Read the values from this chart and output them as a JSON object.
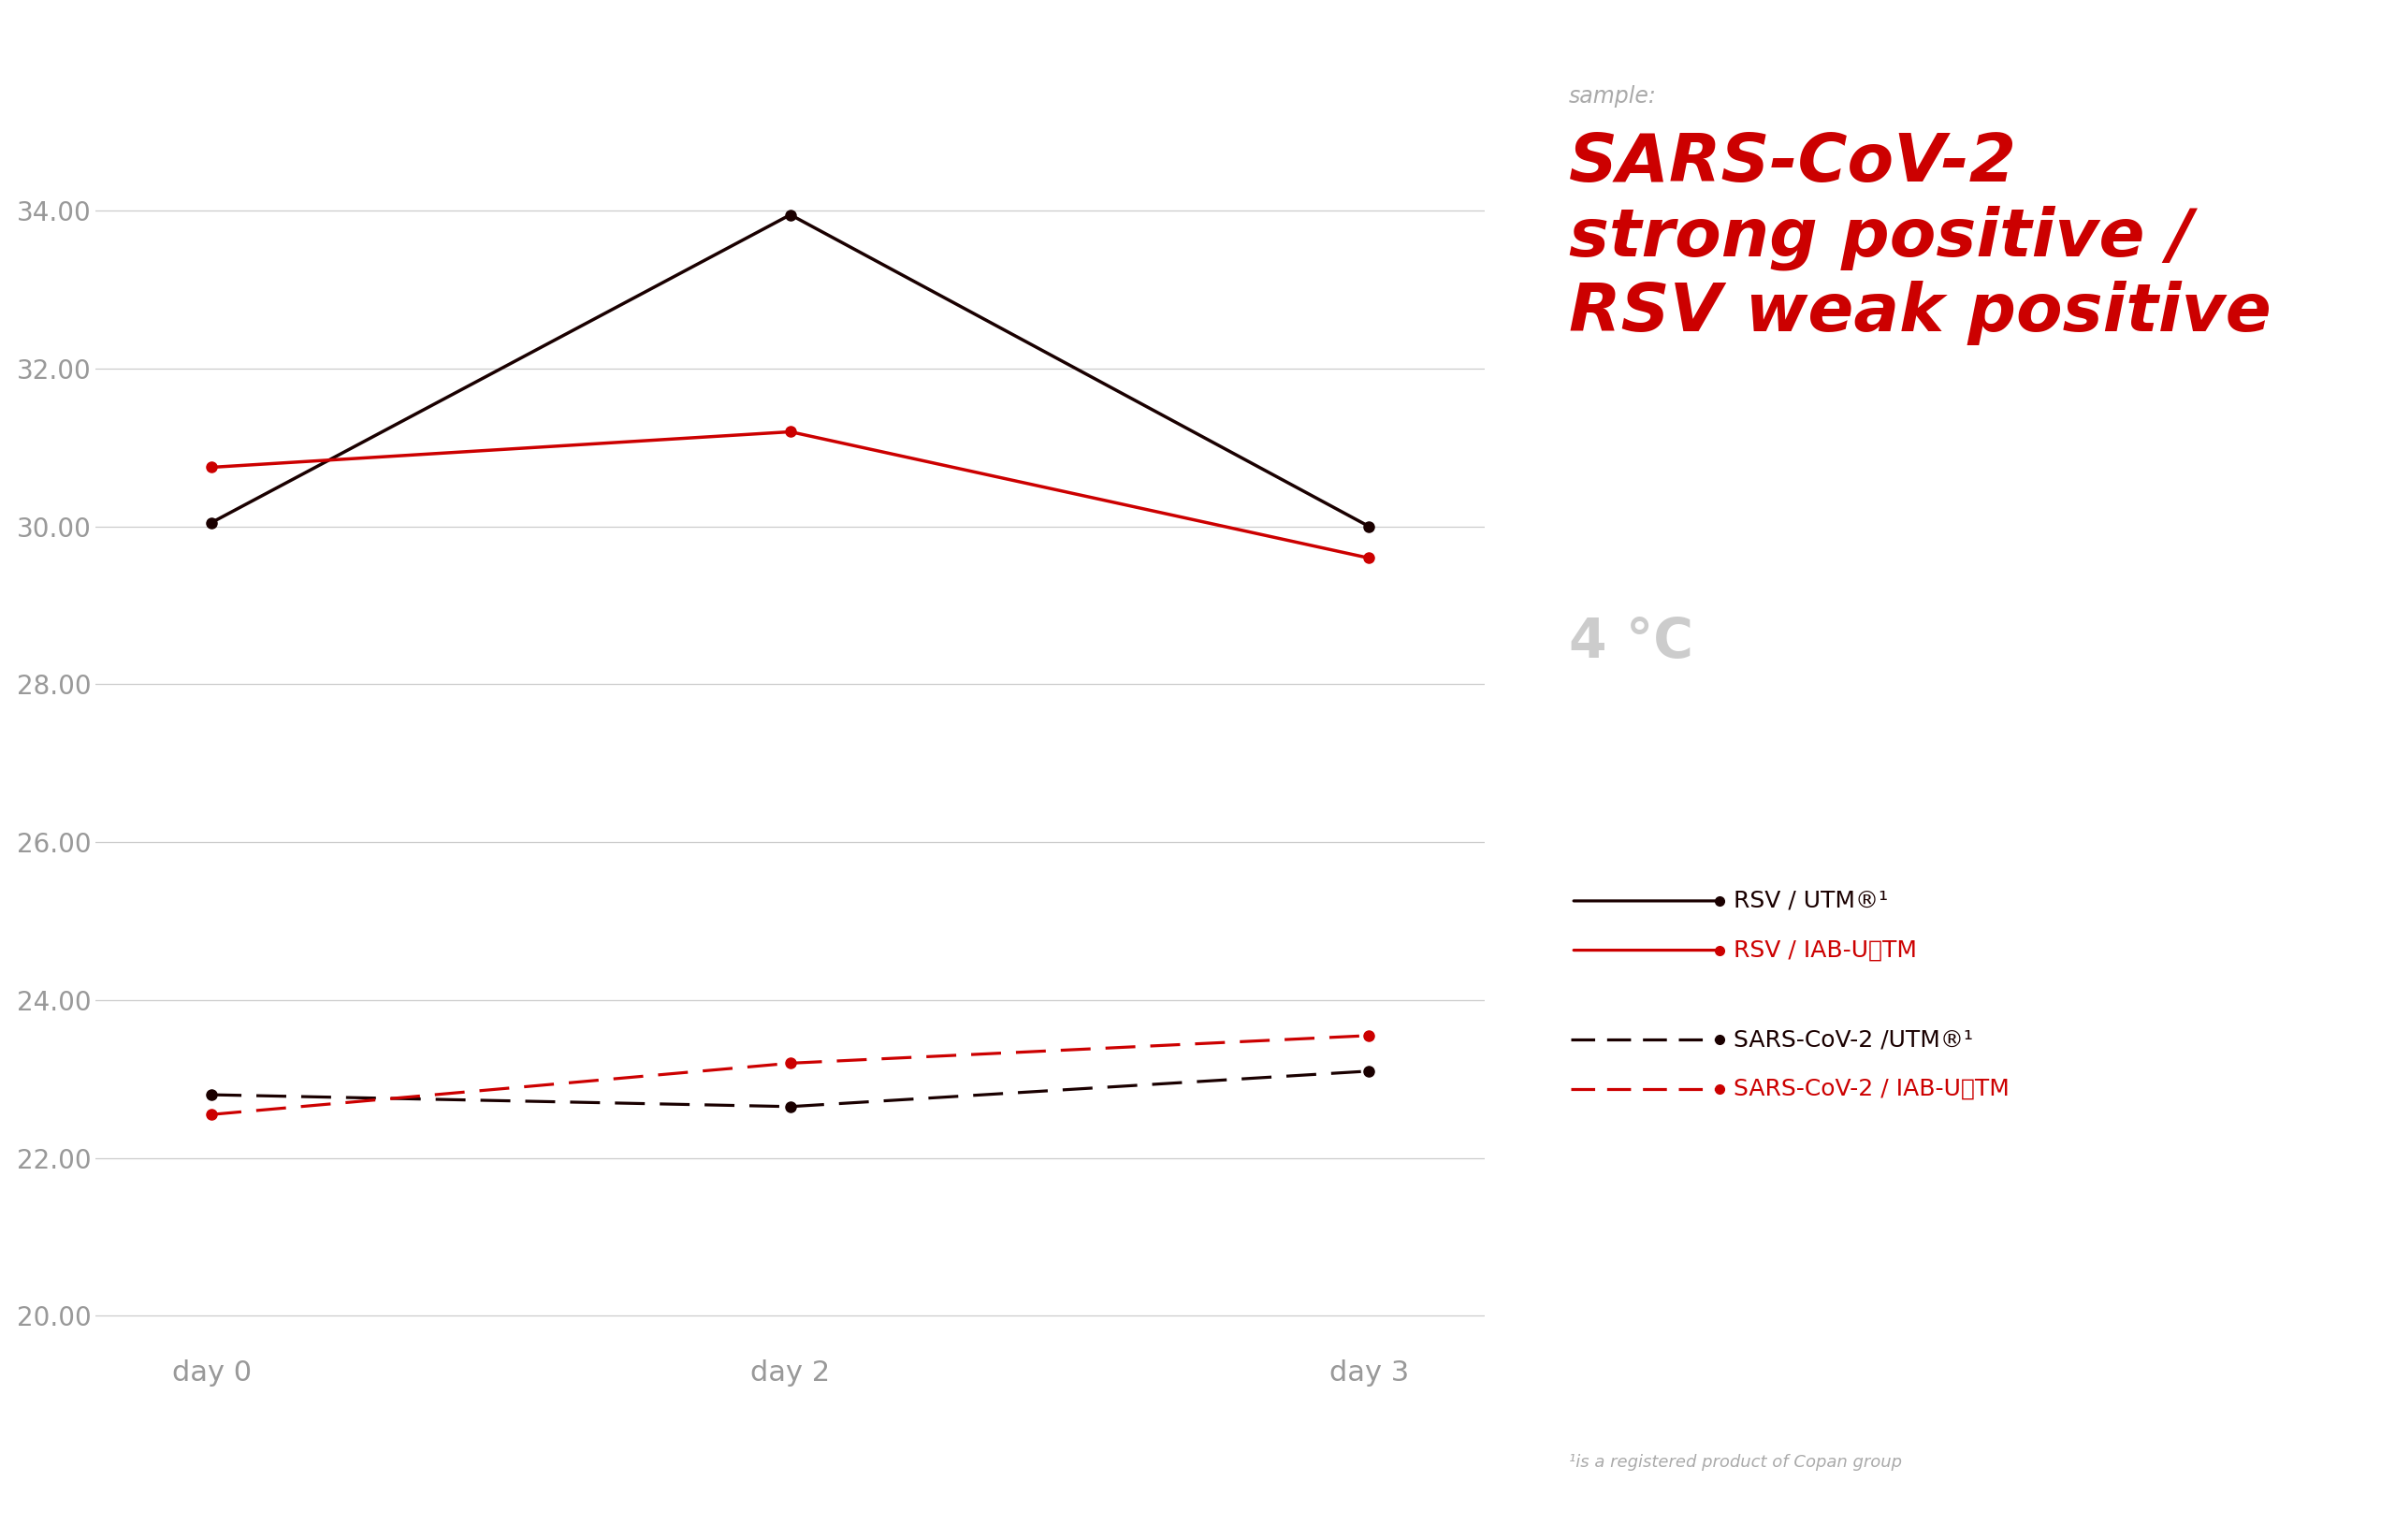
{
  "x_labels": [
    "day 0",
    "day 2",
    "day 3"
  ],
  "x_values": [
    0,
    1,
    2
  ],
  "rsv_utm": [
    30.05,
    33.95,
    30.0
  ],
  "rsv_iab": [
    30.75,
    31.2,
    29.6
  ],
  "sars_utm": [
    22.8,
    22.65,
    23.1
  ],
  "sars_iab": [
    22.55,
    23.2,
    23.55
  ],
  "color_dark": "#1a0000",
  "color_red": "#cc0000",
  "ylim": [
    19.5,
    35.5
  ],
  "yticks": [
    20.0,
    22.0,
    24.0,
    26.0,
    28.0,
    30.0,
    32.0,
    34.0
  ],
  "title_main": "SARS-CoV-2\nstrong positive /\nRSV weak positive",
  "title_sample": "sample:",
  "temp_label": "4 °C",
  "legend_rsv_utm": "RSV / UTM®¹",
  "legend_rsv_iab": "RSV / IAB-UⓂTM",
  "legend_sars_utm": "SARS-CoV-2 /UTM®¹",
  "legend_sars_iab": "SARS-CoV-2 / IAB-UⓂTM",
  "footnote": "¹is a registered product of Copan group",
  "bg_color": "#ffffff",
  "grid_color": "#cccccc",
  "tick_color": "#999999",
  "xtick_color": "#999999"
}
